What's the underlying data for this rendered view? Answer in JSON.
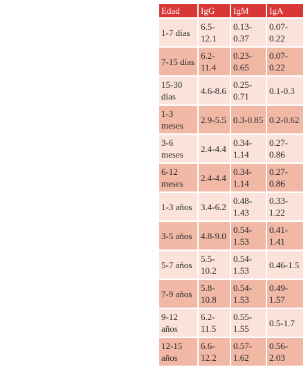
{
  "table": {
    "headers": [
      "Edad",
      "IgG",
      "IgM",
      "IgA"
    ],
    "rows": [
      [
        "1-7 días",
        "6.5-12.1",
        "0.13-0.37",
        "0.07-0.22"
      ],
      [
        "7-15 días",
        "6.2-11.4",
        "0.23-0.65",
        "0.07-0.22"
      ],
      [
        "15-30 días",
        "4.6-8.6",
        "0.25-0.71",
        "0.1-0.3"
      ],
      [
        "1-3 meses",
        "2.9-5.5",
        "0.3-0.85",
        "0.2-0.62"
      ],
      [
        "3-6 meses",
        "2.4-4.4",
        "0.34-1.14",
        "0.27-0.86"
      ],
      [
        "6-12 meses",
        "2.4-4.4",
        "0.34-1.14",
        "0.27-0.86"
      ],
      [
        "1-3 años",
        "3.4-6.2",
        "0.48-1.43",
        "0.33-1.22"
      ],
      [
        "3-5 años",
        "4.8-9.0",
        "0.54-1.53",
        "0.41-1.41"
      ],
      [
        "5-7 años",
        "5.5-10.2",
        "0.54-1.53",
        "0.46-1.5"
      ],
      [
        "7-9 años",
        "5.8-10.8",
        "0.54-1.53",
        "0.49-1.57"
      ],
      [
        "9-12 años",
        "6.2-11.5",
        "0.55-1.55",
        "0.5-1.7"
      ],
      [
        "12-15 años",
        "6.6-12.2",
        "0.57-1.62",
        "0.56-2.03"
      ]
    ]
  },
  "colors": {
    "header_bg": "#d93636",
    "row_light": "#fbe3db",
    "row_dark": "#f1b8a6"
  }
}
